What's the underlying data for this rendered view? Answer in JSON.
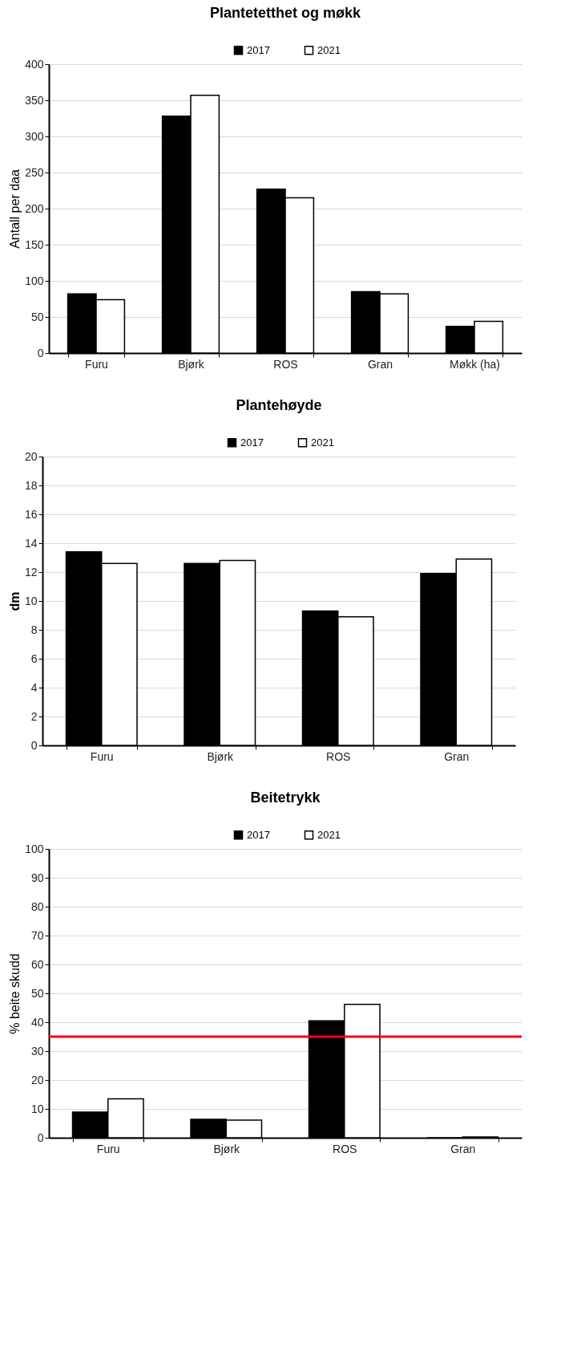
{
  "chart_data": [
    {
      "type": "bar",
      "title": "Plantetetthet og møkk",
      "ylabel": "Antall per daa",
      "categories": [
        "Furu",
        "Bjørk",
        "ROS",
        "Gran",
        "Møkk (ha)"
      ],
      "series": [
        {
          "name": "2017",
          "color": "#000000",
          "values": [
            82,
            328,
            227,
            85,
            37
          ]
        },
        {
          "name": "2021",
          "color": "#ffffff",
          "values": [
            74,
            357,
            215,
            82,
            44
          ]
        }
      ],
      "ylim": [
        0,
        400
      ],
      "yticks": [
        0,
        50,
        100,
        150,
        200,
        250,
        300,
        350,
        400
      ],
      "grid": "y",
      "legend": "top"
    },
    {
      "type": "bar",
      "title": "Plantehøyde",
      "ylabel": "dm",
      "categories": [
        "Furu",
        "Bjørk",
        "ROS",
        "Gran"
      ],
      "series": [
        {
          "name": "2017",
          "color": "#000000",
          "values": [
            13.4,
            12.6,
            9.3,
            11.9
          ]
        },
        {
          "name": "2021",
          "color": "#ffffff",
          "values": [
            12.6,
            12.8,
            8.9,
            12.9
          ]
        }
      ],
      "ylim": [
        0,
        20
      ],
      "yticks": [
        0,
        2,
        4,
        6,
        8,
        10,
        12,
        14,
        16,
        18,
        20
      ],
      "grid": "y",
      "legend": "top"
    },
    {
      "type": "bar",
      "title": "Beitetrykk",
      "ylabel": "% beite skudd",
      "categories": [
        "Furu",
        "Bjørk",
        "ROS",
        "Gran"
      ],
      "series": [
        {
          "name": "2017",
          "color": "#000000",
          "values": [
            8.9,
            6.4,
            40.5,
            0
          ]
        },
        {
          "name": "2021",
          "color": "#ffffff",
          "values": [
            13.5,
            6.1,
            46.2,
            0.3
          ]
        }
      ],
      "ylim": [
        0,
        100
      ],
      "yticks": [
        0,
        10,
        20,
        30,
        40,
        50,
        60,
        70,
        80,
        90,
        100
      ],
      "grid": "y",
      "legend": "top",
      "ref_lines": [
        {
          "axis": "y",
          "value": 35,
          "color": "#ff0000"
        }
      ]
    }
  ]
}
